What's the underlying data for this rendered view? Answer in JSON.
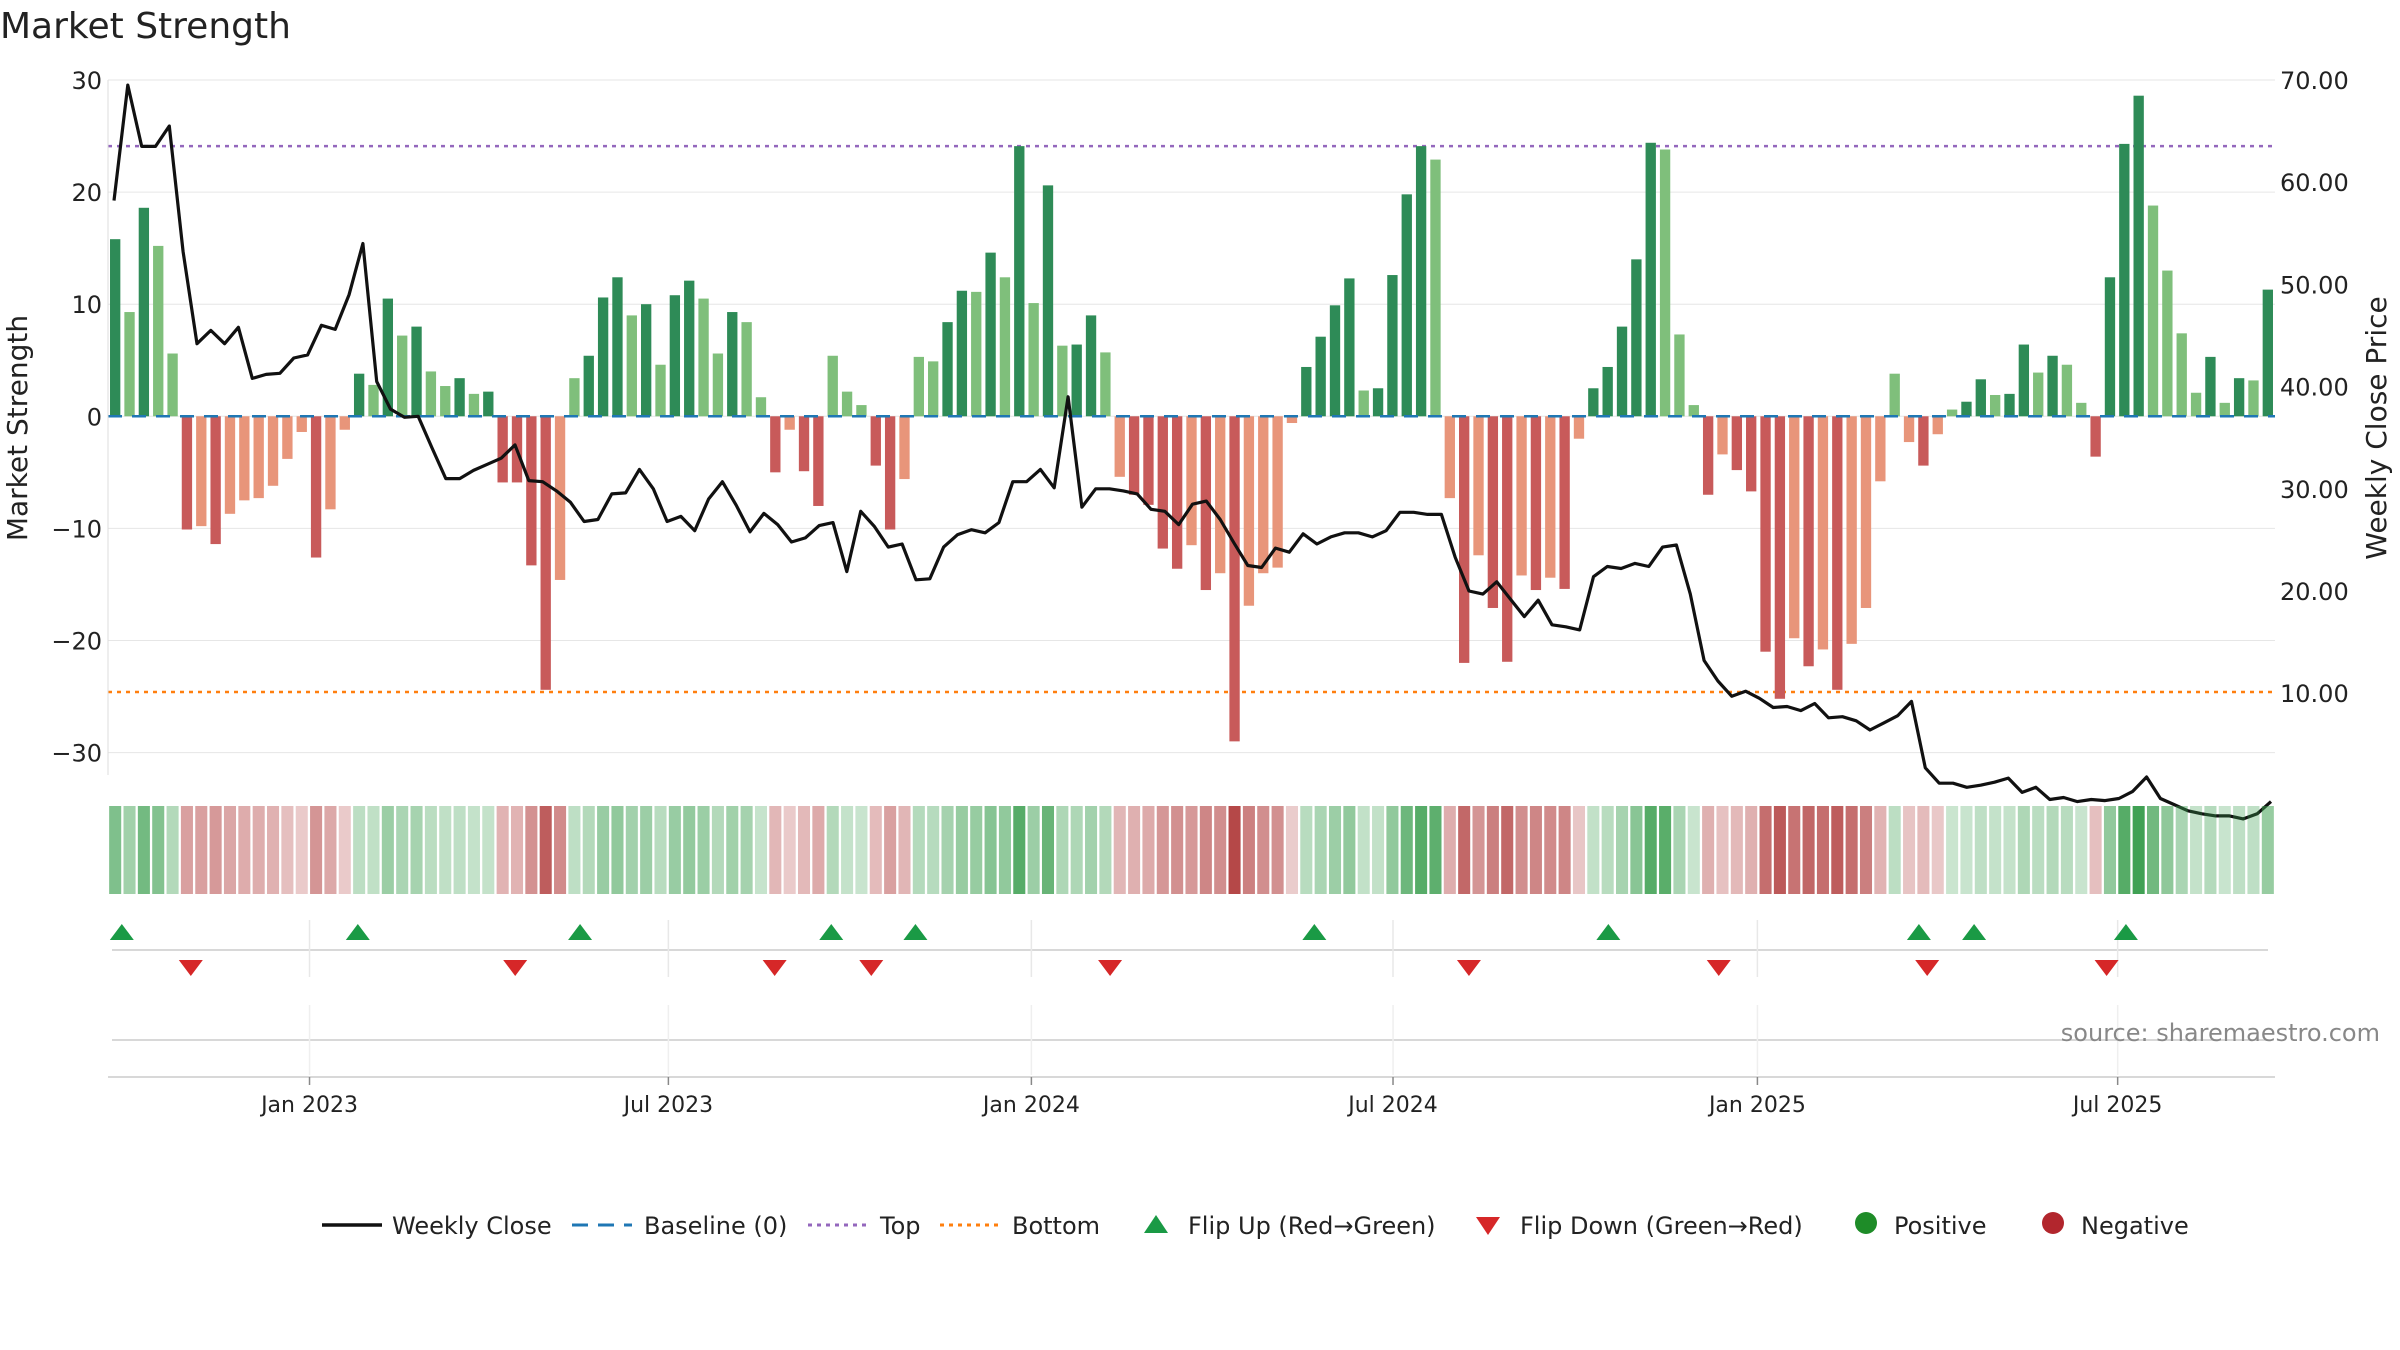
{
  "chart_data": {
    "type": "bar",
    "title": "Market Strength",
    "ylabel_left": "Market Strength",
    "ylabel_right": "Weekly Close Price",
    "source_text": "source: sharemaestro.com",
    "ylim_left": [
      -32,
      30
    ],
    "ylim_right": [
      2.0,
      70.0
    ],
    "left_ticks": [
      30,
      20,
      10,
      0,
      -10,
      -20,
      -30
    ],
    "left_tick_labels": [
      "30",
      "20",
      "10",
      "0",
      "−10",
      "−20",
      "−30"
    ],
    "right_ticks": [
      70,
      60,
      50,
      40,
      30,
      20,
      10
    ],
    "right_tick_labels": [
      "70.00",
      "60.00",
      "50.00",
      "40.00",
      "30.00",
      "20.00",
      "10.00"
    ],
    "x_range": [
      0,
      157
    ],
    "x_ticks": [
      {
        "x": 14.6,
        "label": "Jan 2023"
      },
      {
        "x": 40.6,
        "label": "Jul 2023"
      },
      {
        "x": 66.9,
        "label": "Jan 2024"
      },
      {
        "x": 93.1,
        "label": "Jul 2024"
      },
      {
        "x": 119.5,
        "label": "Jan 2025"
      },
      {
        "x": 145.6,
        "label": "Jul 2025"
      }
    ],
    "reference_lines": {
      "baseline": 0,
      "top": 24.1,
      "bottom": -24.6
    },
    "strength_values": [
      15.8,
      9.3,
      18.6,
      15.2,
      5.6,
      -10.1,
      -9.8,
      -11.4,
      -8.7,
      -7.5,
      -7.3,
      -6.2,
      -3.8,
      -1.4,
      -12.6,
      -8.3,
      -1.2,
      3.8,
      2.8,
      10.5,
      7.2,
      8.0,
      4.0,
      2.7,
      3.4,
      2.0,
      2.2,
      -5.9,
      -5.9,
      -13.3,
      -24.4,
      -14.6,
      3.4,
      5.4,
      10.6,
      12.4,
      9.0,
      10.0,
      4.6,
      10.8,
      12.1,
      10.5,
      5.6,
      9.3,
      8.4,
      1.7,
      -5.0,
      -1.2,
      -4.9,
      -8.0,
      5.4,
      2.2,
      1.0,
      -4.4,
      -10.1,
      -5.6,
      5.3,
      4.9,
      8.4,
      11.2,
      11.1,
      14.6,
      12.4,
      24.1,
      10.1,
      20.6,
      6.3,
      6.4,
      9.0,
      5.7,
      -5.4,
      -7.0,
      -7.9,
      -11.8,
      -13.6,
      -11.5,
      -15.5,
      -14.0,
      -29.0,
      -16.9,
      -14.0,
      -13.5,
      -0.6,
      4.4,
      7.1,
      9.9,
      12.3,
      2.3,
      2.5,
      12.6,
      19.8,
      24.1,
      22.9,
      -7.3,
      -22.0,
      -12.4,
      -17.1,
      -21.9,
      -14.2,
      -15.5,
      -14.4,
      -15.4,
      -2.0,
      2.5,
      4.4,
      8.0,
      14.0,
      24.4,
      23.8,
      7.3,
      1.0,
      -7.0,
      -3.4,
      -4.8,
      -6.7,
      -21.0,
      -25.2,
      -19.8,
      -22.3,
      -20.8,
      -24.4,
      -20.3,
      -17.1,
      -5.8,
      3.8,
      -2.3,
      -4.4,
      -1.6,
      0.6,
      1.3,
      3.3,
      1.9,
      2.0,
      6.4,
      3.9,
      5.4,
      4.6,
      1.2,
      -3.6,
      12.4,
      24.3,
      28.6,
      18.8,
      13.0,
      7.4,
      2.1,
      5.3,
      1.2,
      3.4,
      3.2,
      11.3
    ],
    "weekly_close": [
      58.2,
      69.5,
      63.5,
      63.5,
      65.5,
      53.2,
      44.2,
      45.5,
      44.2,
      45.8,
      40.8,
      41.2,
      41.3,
      42.8,
      43.1,
      46.0,
      45.6,
      49.0,
      54.0,
      40.5,
      37.8,
      37.0,
      37.1,
      34.0,
      31.0,
      31.0,
      31.8,
      32.4,
      33.0,
      34.3,
      30.8,
      30.7,
      29.8,
      28.7,
      26.8,
      27.0,
      29.5,
      29.6,
      31.9,
      30.0,
      26.8,
      27.3,
      25.9,
      29.0,
      30.7,
      28.4,
      25.8,
      27.6,
      26.5,
      24.8,
      25.2,
      26.4,
      26.7,
      21.9,
      27.8,
      26.3,
      24.3,
      24.6,
      21.1,
      21.2,
      24.3,
      25.5,
      26.0,
      25.7,
      26.7,
      30.7,
      30.7,
      31.9,
      30.1,
      39.0,
      28.2,
      30.0,
      30.0,
      29.8,
      29.5,
      28.0,
      27.8,
      26.5,
      28.5,
      28.8,
      27.0,
      24.7,
      22.5,
      22.3,
      24.2,
      23.8,
      25.6,
      24.6,
      25.3,
      25.7,
      25.7,
      25.3,
      25.9,
      27.7,
      27.7,
      27.5,
      27.5,
      23.3,
      20.0,
      19.7,
      20.9,
      19.2,
      17.5,
      19.1,
      16.7,
      16.5,
      16.2,
      21.4,
      22.4,
      22.2,
      22.7,
      22.4,
      24.3,
      24.5,
      19.7,
      13.2,
      11.2,
      9.7,
      10.2,
      9.5,
      8.6,
      8.7,
      8.3,
      9.0,
      7.6,
      7.7,
      7.3,
      6.4,
      7.1,
      7.8,
      9.2,
      2.7,
      1.2,
      1.2,
      0.8,
      1.0,
      1.3,
      1.7,
      0.3,
      0.8,
      -0.4,
      -0.2,
      -0.6,
      -0.4,
      -0.5,
      -0.3,
      0.4,
      1.8,
      -0.3,
      -0.9,
      -1.5,
      -1.8,
      -2.0,
      -2.0,
      -2.3,
      -1.8,
      -0.6
    ],
    "flip_up_x": [
      1.0,
      18.1,
      34.2,
      52.4,
      58.5,
      87.4,
      108.7,
      131.2,
      135.2,
      146.2
    ],
    "flip_down_x": [
      6.0,
      29.5,
      48.3,
      55.3,
      72.6,
      98.6,
      116.7,
      131.8,
      144.8
    ],
    "legend": [
      "Weekly Close",
      "Baseline (0)",
      "Top",
      "Bottom",
      "Flip Up (Red→Green)",
      "Flip Down (Green→Red)",
      "Positive",
      "Negative"
    ],
    "colors": {
      "strong_green": "#2e8b57",
      "light_green": "#7fbf7b",
      "strong_red": "#c85a5a",
      "light_red": "#e8957a",
      "close_line": "#111111",
      "baseline": "#1f77b4",
      "top_line": "#9467bd",
      "bottom_line": "#ff7f0e",
      "flip_up": "#1a9a45",
      "flip_down": "#d62728",
      "positive_dot": "#1e8c28",
      "negative_dot": "#b2262d",
      "grid": "#e6e6e6",
      "source_text": "#888888"
    }
  }
}
